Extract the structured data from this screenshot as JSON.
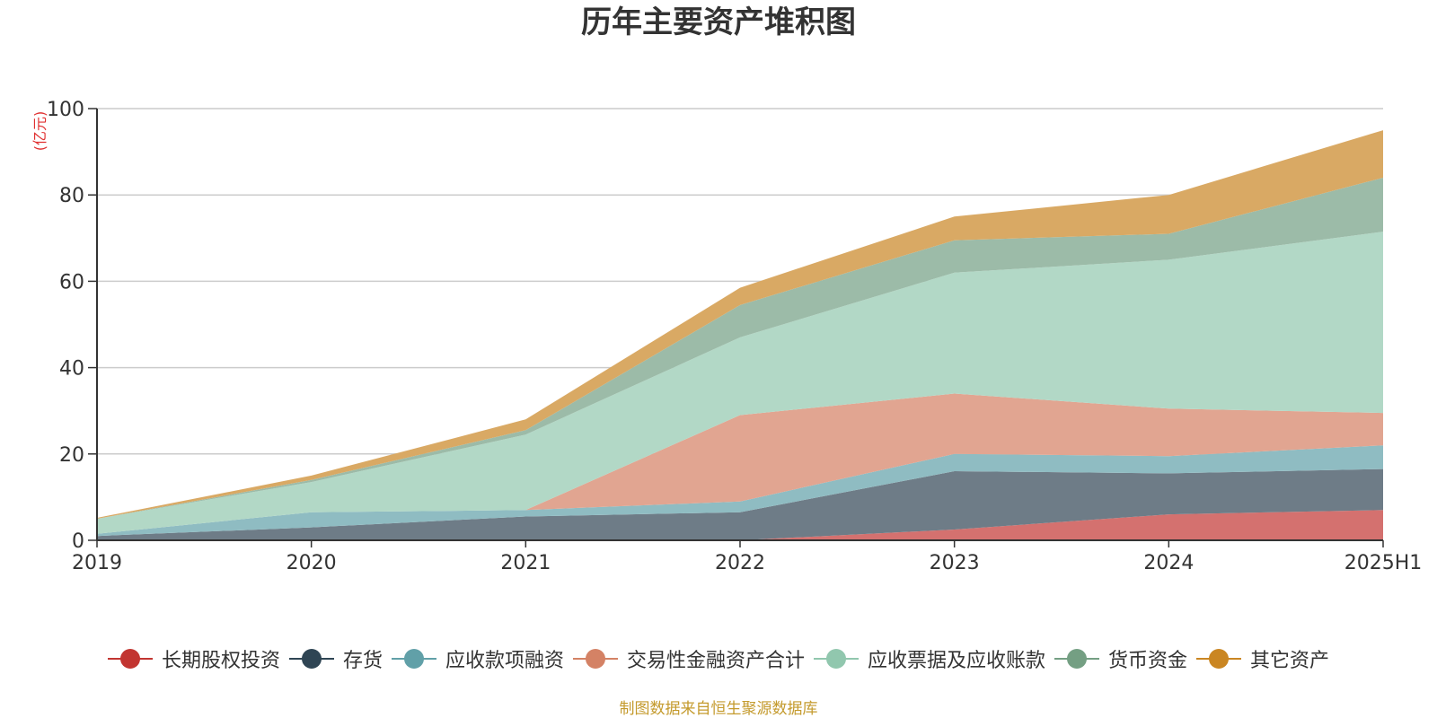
{
  "chart_data": {
    "type": "area",
    "stacked": true,
    "title": "历年主要资产堆积图",
    "ylabel": "(亿元)",
    "x": [
      "2019",
      "2020",
      "2021",
      "2022",
      "2023",
      "2024",
      "2025H1"
    ],
    "ylim": [
      0,
      100
    ],
    "yticks": [
      "0",
      "20",
      "40",
      "60",
      "80",
      "100"
    ],
    "grid": true,
    "legend_position": "bottom",
    "series": [
      {
        "name": "长期股权投资",
        "color": "#c23531",
        "fill": "#d4716f",
        "values": [
          0,
          0,
          0,
          0,
          2.5,
          6,
          7
        ]
      },
      {
        "name": "存货",
        "color": "#2f4554",
        "fill": "#6e7c87",
        "values": [
          1,
          3,
          5.5,
          6.5,
          13.5,
          9.5,
          9.5
        ]
      },
      {
        "name": "应收款项融资",
        "color": "#61a0a8",
        "fill": "#8fbcc2",
        "values": [
          0.5,
          3.5,
          1.5,
          2.5,
          4,
          4,
          5.5
        ]
      },
      {
        "name": "交易性金融资产合计",
        "color": "#d48265",
        "fill": "#e1a591",
        "values": [
          0,
          0,
          0,
          20,
          14,
          11,
          7.5
        ]
      },
      {
        "name": "应收票据及应收账款",
        "color": "#91c7ae",
        "fill": "#b2d8c6",
        "values": [
          3.5,
          7,
          17.5,
          18,
          28,
          34.5,
          42
        ]
      },
      {
        "name": "货币资金",
        "color": "#749f83",
        "fill": "#9cbba8",
        "values": [
          0,
          0.5,
          1,
          7.5,
          7.5,
          6,
          12.5
        ]
      },
      {
        "name": "其它资产",
        "color": "#ca8622",
        "fill": "#d9a964",
        "values": [
          0.2,
          1,
          2.5,
          4,
          5.5,
          9,
          11
        ]
      }
    ]
  },
  "source_note": "制图数据来自恒生聚源数据库"
}
